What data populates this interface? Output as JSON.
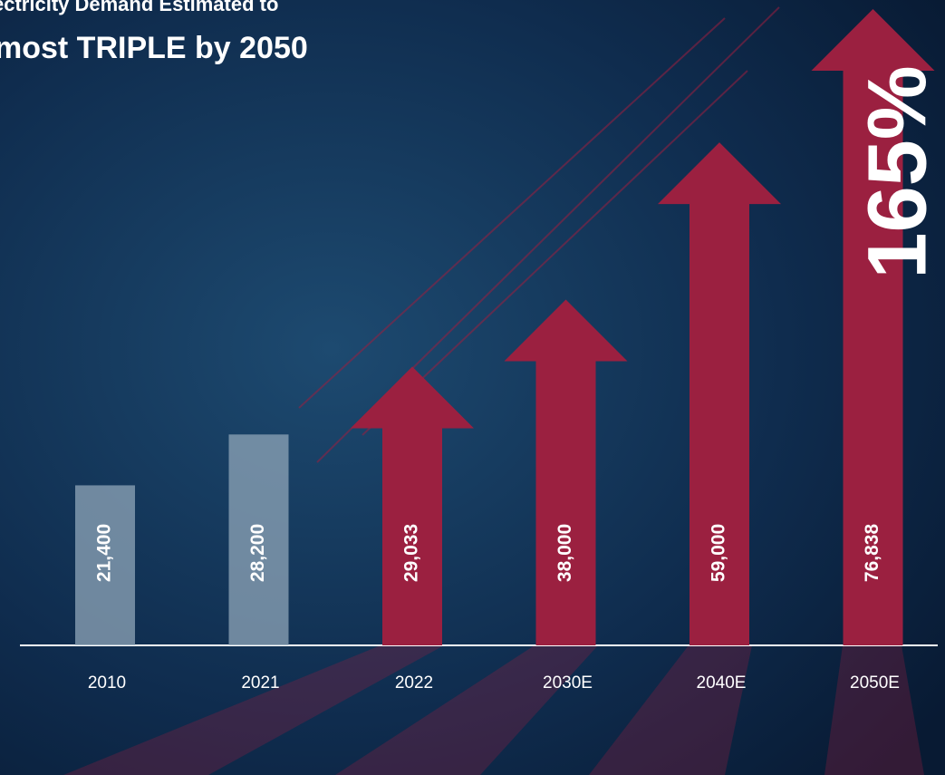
{
  "chart_data": {
    "type": "arrow-bar",
    "title": "ectricity Demand Estimated to",
    "subtitle": "most TRIPLE by 2050",
    "annotation": "165%",
    "categories": [
      "2010",
      "2021",
      "2022",
      "2030E",
      "2040E",
      "2050E"
    ],
    "values": [
      21400,
      28200,
      29033,
      38000,
      59000,
      76838
    ],
    "value_labels": [
      "21,400",
      "28,200",
      "29,033",
      "38,000",
      "59,000",
      "76,838"
    ],
    "shapes": [
      "bar",
      "bar",
      "arrow",
      "arrow",
      "arrow",
      "arrow"
    ],
    "colors": [
      "#8fa6b8",
      "#8fa6b8",
      "#9b2040",
      "#9b2040",
      "#9b2040",
      "#9b2040"
    ]
  }
}
